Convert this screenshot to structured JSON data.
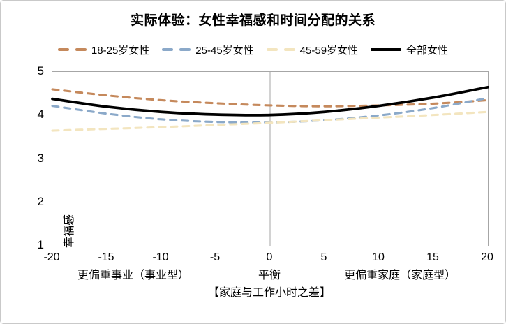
{
  "title": "实际体验：女性幸福感和时间分配的关系",
  "legend": {
    "items": [
      {
        "label": "18-25岁女性",
        "color": "#C5895C",
        "style": "dashed"
      },
      {
        "label": "25-45岁女性",
        "color": "#8BA9C9",
        "style": "dashed"
      },
      {
        "label": "45-59岁女性",
        "color": "#F3E5BF",
        "style": "dashed"
      },
      {
        "label": "全部女性",
        "color": "#000000",
        "style": "solid"
      }
    ]
  },
  "chart_data": {
    "type": "line",
    "title": "实际体验：女性幸福感和时间分配的关系",
    "xlabel": "【家庭与工作小时之差】",
    "ylabel": "幸福感",
    "xlim": [
      -20,
      20
    ],
    "ylim": [
      1,
      5
    ],
    "x_ticks": [
      -20,
      -15,
      -10,
      -5,
      0,
      5,
      10,
      15,
      20
    ],
    "y_ticks": [
      5,
      4,
      3,
      2,
      1
    ],
    "x": [
      -20,
      -15,
      -10,
      -5,
      0,
      5,
      10,
      15,
      20
    ],
    "series": [
      {
        "name": "18-25岁女性",
        "color": "#C5895C",
        "dashed": true,
        "values": [
          4.6,
          4.46,
          4.35,
          4.28,
          4.23,
          4.21,
          4.23,
          4.27,
          4.35
        ]
      },
      {
        "name": "25-45岁女性",
        "color": "#8BA9C9",
        "dashed": true,
        "values": [
          4.22,
          4.04,
          3.91,
          3.85,
          3.84,
          3.89,
          4.0,
          4.17,
          4.4
        ]
      },
      {
        "name": "45-59岁女性",
        "color": "#F3E5BF",
        "dashed": true,
        "values": [
          3.65,
          3.69,
          3.73,
          3.78,
          3.83,
          3.89,
          3.95,
          4.01,
          4.08
        ]
      },
      {
        "name": "全部女性",
        "color": "#000000",
        "dashed": false,
        "values": [
          4.38,
          4.2,
          4.08,
          4.02,
          4.01,
          4.08,
          4.22,
          4.41,
          4.65
        ]
      }
    ],
    "zone_labels": [
      {
        "text": "更偏重事业（事业型）",
        "x": -12.5
      },
      {
        "text": "平衡",
        "x": 0
      },
      {
        "text": "更偏重家庭（家庭型）",
        "x": 12
      }
    ],
    "zero_line": true,
    "zero_line_color": "#b3b3b3",
    "grid": false,
    "legend_position": "top"
  }
}
